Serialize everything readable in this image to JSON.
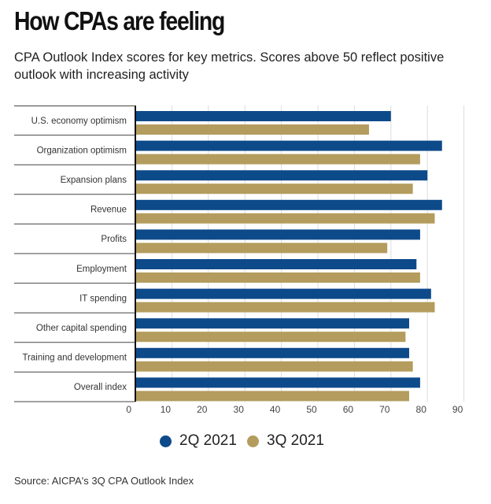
{
  "header": {
    "title": "How CPAs are feeling",
    "subtitle": "CPA Outlook Index scores for key metrics. Scores above 50 reflect positive outlook with increasing activity"
  },
  "colors": {
    "series_1": "#0d4a8a",
    "series_2": "#b39c5d",
    "grid": "#dddddd",
    "separator": "#444444"
  },
  "chart_data": {
    "type": "bar",
    "orientation": "horizontal",
    "categories": [
      "U.S. economy optimism",
      "Organization optimism",
      "Expansion plans",
      "Revenue",
      "Profits",
      "Employment",
      "IT spending",
      "Other capital spending",
      "Training and development",
      "Overall index"
    ],
    "series": [
      {
        "name": "2Q 2021",
        "values": [
          70,
          84,
          80,
          84,
          78,
          77,
          81,
          75,
          75,
          78
        ]
      },
      {
        "name": "3Q 2021",
        "values": [
          64,
          78,
          76,
          82,
          69,
          78,
          82,
          74,
          76,
          75
        ]
      }
    ],
    "xlim": [
      0,
      90
    ],
    "x_ticks": [
      "0",
      "10",
      "20",
      "30",
      "40",
      "50",
      "60",
      "70",
      "80",
      "90"
    ],
    "grid": true,
    "legend": "bottom-center"
  },
  "footer": {
    "source": "Source: AICPA's 3Q CPA Outlook Index"
  }
}
